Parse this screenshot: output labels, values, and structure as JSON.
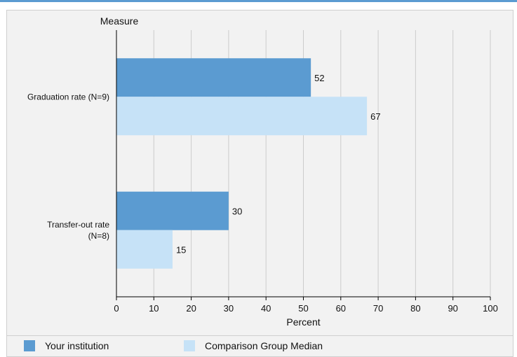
{
  "chart_data": {
    "type": "bar",
    "orientation": "horizontal",
    "categories": [
      [
        "Graduation rate (N=9)"
      ],
      [
        "Transfer-out rate",
        "(N=8)"
      ]
    ],
    "series": [
      {
        "name": "Your institution",
        "values": [
          52,
          30
        ],
        "color": "#5b9bd1"
      },
      {
        "name": "Comparison Group Median",
        "values": [
          67,
          15
        ],
        "color": "#c6e2f7"
      }
    ],
    "ylabel": "Measure",
    "xlabel": "Percent",
    "xlim": [
      0,
      100
    ],
    "xticks": [
      0,
      10,
      20,
      30,
      40,
      50,
      60,
      70,
      80,
      90,
      100
    ],
    "grid": true,
    "legend_position": "bottom"
  }
}
